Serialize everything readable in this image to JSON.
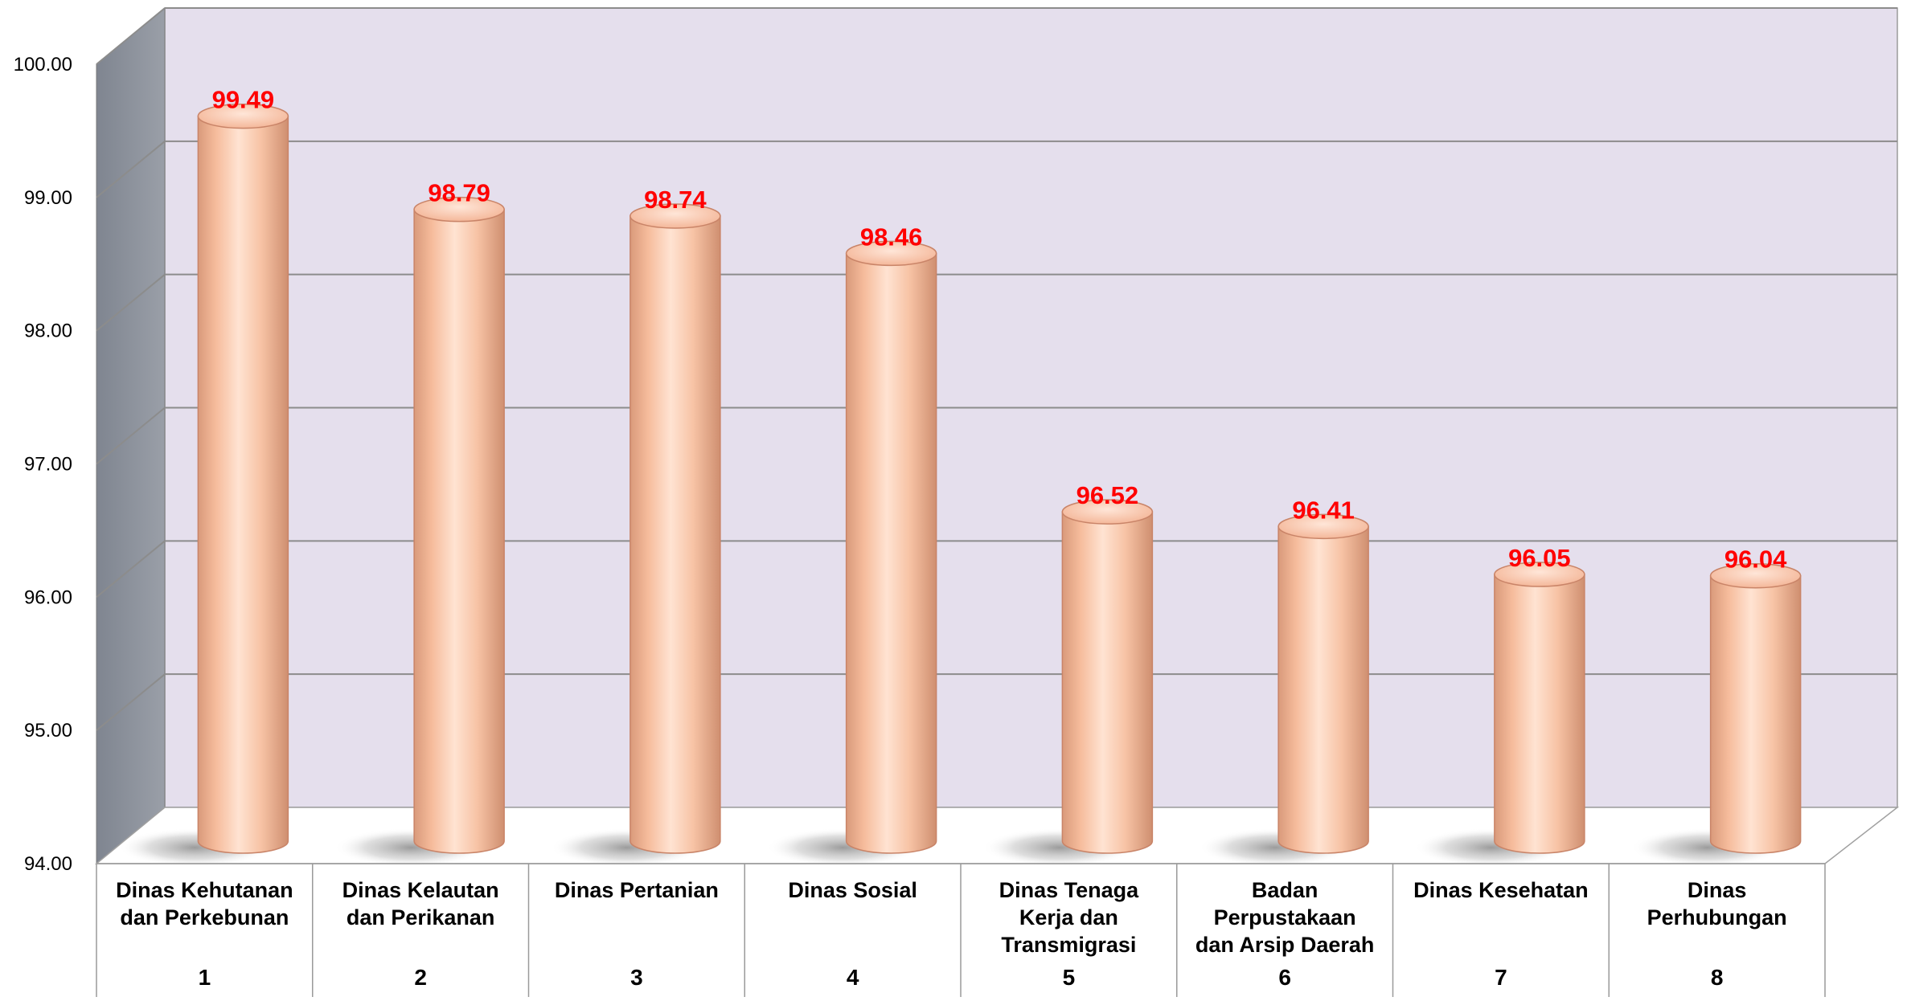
{
  "chart_data": {
    "type": "bar",
    "style": "3d-cylinder",
    "title": "",
    "xlabel": "",
    "ylabel": "",
    "ylim": [
      94,
      100
    ],
    "yticks": [
      "94.00",
      "95.00",
      "96.00",
      "97.00",
      "98.00",
      "99.00",
      "100.00"
    ],
    "grid": true,
    "legend": "none",
    "categories": [
      {
        "name": "Dinas Kehutanan dan Perkebunan",
        "lines": [
          "Dinas Kehutanan",
          "dan Perkebunan"
        ],
        "index": "1"
      },
      {
        "name": "Dinas Kelautan dan Perikanan",
        "lines": [
          "Dinas Kelautan",
          "dan Perikanan"
        ],
        "index": "2"
      },
      {
        "name": "Dinas Pertanian",
        "lines": [
          "Dinas Pertanian"
        ],
        "index": "3"
      },
      {
        "name": "Dinas Sosial",
        "lines": [
          "Dinas Sosial"
        ],
        "index": "4"
      },
      {
        "name": "Dinas Tenaga Kerja dan Transmigrasi",
        "lines": [
          "Dinas Tenaga",
          "Kerja dan",
          "Transmigrasi"
        ],
        "index": "5"
      },
      {
        "name": "Badan Perpustakaan dan Arsip Daerah",
        "lines": [
          "Badan",
          "Perpustakaan",
          "dan Arsip Daerah"
        ],
        "index": "6"
      },
      {
        "name": "Dinas Kesehatan",
        "lines": [
          "Dinas Kesehatan"
        ],
        "index": "7"
      },
      {
        "name": "Dinas Perhubungan",
        "lines": [
          "Dinas",
          "Perhubungan"
        ],
        "index": "8"
      }
    ],
    "values": [
      99.49,
      98.79,
      98.74,
      98.46,
      96.52,
      96.41,
      96.05,
      96.04
    ],
    "data_labels": [
      "99.49",
      "98.79",
      "98.74",
      "98.46",
      "96.52",
      "96.41",
      "96.05",
      "96.04"
    ],
    "colors": {
      "bar": "#fbc9ad",
      "bar_edge": "#c98468",
      "data_label": "#ff0000",
      "back_wall": "#e5dfed",
      "side_wall": "#8a8f99",
      "floor": "#ffffff",
      "gridline": "#8c8c8c"
    }
  }
}
